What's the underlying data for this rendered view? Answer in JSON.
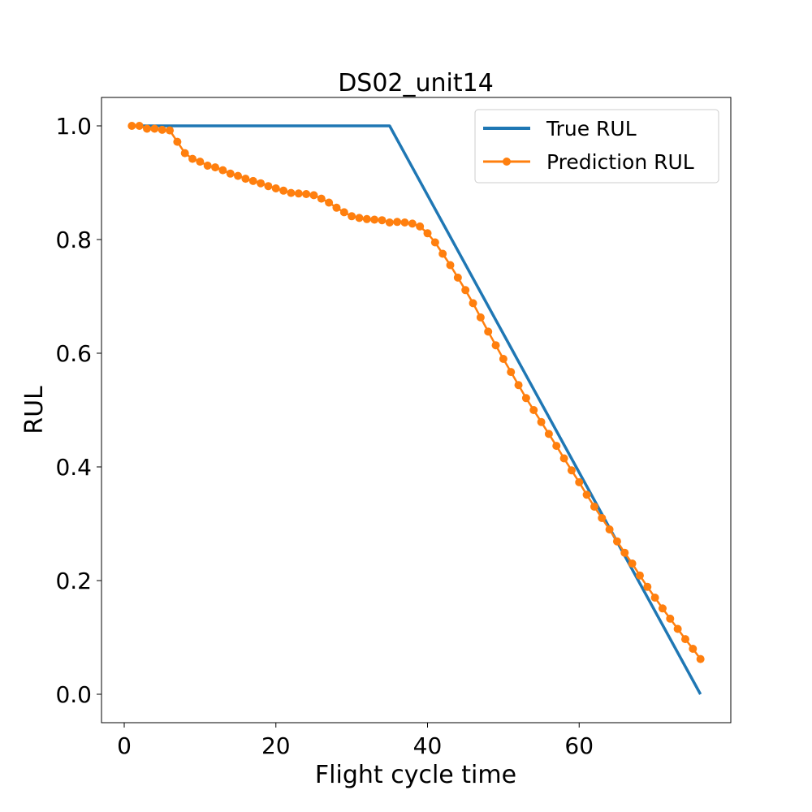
{
  "chart_data": {
    "type": "line",
    "title": "DS02_unit14",
    "xlabel": "Flight cycle time",
    "ylabel": "RUL",
    "xlim": [
      -3,
      80
    ],
    "ylim": [
      -0.05,
      1.05
    ],
    "xticks": [
      0,
      20,
      40,
      60
    ],
    "yticks": [
      0.0,
      0.2,
      0.4,
      0.6,
      0.8,
      1.0
    ],
    "xtick_labels": [
      "0",
      "20",
      "40",
      "60"
    ],
    "ytick_labels": [
      "0.0",
      "0.2",
      "0.4",
      "0.6",
      "0.8",
      "1.0"
    ],
    "grid": false,
    "legend_position": "top-right",
    "series": [
      {
        "name": "True RUL",
        "color": "#1f77b4",
        "marker": "none",
        "x": [
          2,
          35,
          76
        ],
        "y": [
          1.0,
          1.0,
          0.0
        ]
      },
      {
        "name": "Prediction RUL",
        "color": "#ff7f0e",
        "marker": "circle",
        "x": [
          1,
          2,
          3,
          4,
          5,
          6,
          7,
          8,
          9,
          10,
          11,
          12,
          13,
          14,
          15,
          16,
          17,
          18,
          19,
          20,
          21,
          22,
          23,
          24,
          25,
          26,
          27,
          28,
          29,
          30,
          31,
          32,
          33,
          34,
          35,
          36,
          37,
          38,
          39,
          40,
          41,
          42,
          43,
          44,
          45,
          46,
          47,
          48,
          49,
          50,
          51,
          52,
          53,
          54,
          55,
          56,
          57,
          58,
          59,
          60,
          61,
          62,
          63,
          64,
          65,
          66,
          67,
          68,
          69,
          70,
          71,
          72,
          73,
          74,
          75,
          76
        ],
        "y": [
          1.0,
          1.0,
          0.995,
          0.995,
          0.993,
          0.992,
          0.972,
          0.952,
          0.942,
          0.937,
          0.93,
          0.927,
          0.922,
          0.916,
          0.912,
          0.907,
          0.903,
          0.899,
          0.894,
          0.89,
          0.886,
          0.882,
          0.881,
          0.88,
          0.878,
          0.872,
          0.865,
          0.856,
          0.848,
          0.841,
          0.838,
          0.836,
          0.835,
          0.834,
          0.83,
          0.831,
          0.83,
          0.828,
          0.823,
          0.811,
          0.795,
          0.775,
          0.755,
          0.733,
          0.711,
          0.688,
          0.663,
          0.638,
          0.614,
          0.59,
          0.567,
          0.544,
          0.521,
          0.5,
          0.479,
          0.458,
          0.437,
          0.415,
          0.394,
          0.373,
          0.351,
          0.33,
          0.31,
          0.29,
          0.269,
          0.249,
          0.23,
          0.209,
          0.189,
          0.17,
          0.151,
          0.133,
          0.115,
          0.097,
          0.08,
          0.062
        ]
      }
    ]
  }
}
